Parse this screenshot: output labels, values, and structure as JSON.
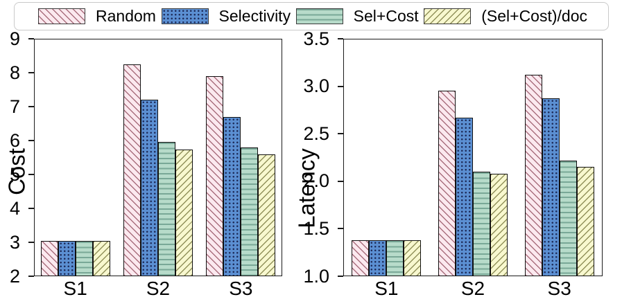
{
  "legend": {
    "items": [
      {
        "label": "Random",
        "icon": "hatch-swatch-diagonal-backslash",
        "fill": "#fbe9ef",
        "hatch": "diagonal-backslash",
        "hatch_color": "#aa6f7e"
      },
      {
        "label": "Selectivity",
        "icon": "hatch-swatch-dots",
        "fill": "#5b8fd2",
        "hatch": "dots",
        "hatch_color": "#1e2c5a"
      },
      {
        "label": "Sel+Cost",
        "icon": "hatch-swatch-horizontal",
        "fill": "#b7dbca",
        "hatch": "horizontal-lines",
        "hatch_color": "#79a897"
      },
      {
        "label": "(Sel+Cost)/doc",
        "icon": "hatch-swatch-diagonal-slash",
        "fill": "#f8f8cf",
        "hatch": "diagonal-slash",
        "hatch_color": "#91915a"
      }
    ]
  },
  "chart_data": [
    {
      "type": "bar",
      "title": "",
      "ylabel": "Cost",
      "xlabel": "",
      "categories": [
        "S1",
        "S2",
        "S3"
      ],
      "ylim": [
        2,
        9
      ],
      "ytick_values": [
        2,
        3,
        4,
        5,
        6,
        7,
        8,
        9
      ],
      "ytick_labels": [
        "2",
        "3",
        "4",
        "5",
        "6",
        "7",
        "8",
        "9"
      ],
      "grid": false,
      "legend_position": "top-shared",
      "series": [
        {
          "name": "Random",
          "values": [
            3.05,
            8.25,
            7.9
          ]
        },
        {
          "name": "Selectivity",
          "values": [
            3.05,
            7.2,
            6.7
          ]
        },
        {
          "name": "Sel+Cost",
          "values": [
            3.05,
            5.95,
            5.8
          ]
        },
        {
          "name": "(Sel+Cost)/doc",
          "values": [
            3.05,
            5.73,
            5.6
          ]
        }
      ]
    },
    {
      "type": "bar",
      "title": "",
      "ylabel": "Latency",
      "xlabel": "",
      "categories": [
        "S1",
        "S2",
        "S3"
      ],
      "ylim": [
        1.0,
        3.5
      ],
      "ytick_values": [
        1.0,
        1.5,
        2.0,
        2.5,
        3.0,
        3.5
      ],
      "ytick_labels": [
        "1.0",
        "1.5",
        "2.0",
        "2.5",
        "3.0",
        "3.5"
      ],
      "grid": false,
      "legend_position": "top-shared",
      "series": [
        {
          "name": "Random",
          "values": [
            1.38,
            2.95,
            3.12
          ]
        },
        {
          "name": "Selectivity",
          "values": [
            1.38,
            2.67,
            2.87
          ]
        },
        {
          "name": "Sel+Cost",
          "values": [
            1.38,
            2.1,
            2.22
          ]
        },
        {
          "name": "(Sel+Cost)/doc",
          "values": [
            1.38,
            2.08,
            2.15
          ]
        }
      ]
    }
  ]
}
